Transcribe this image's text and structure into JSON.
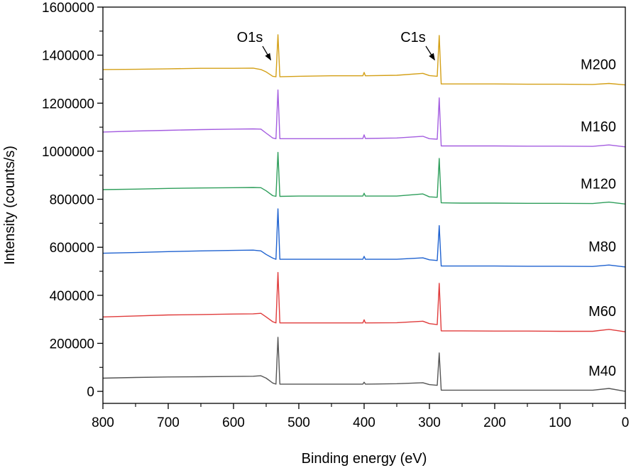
{
  "chart_data": {
    "type": "line",
    "title": "",
    "xlabel": "Binding energy (eV)",
    "ylabel": "Intensity (counts/s)",
    "xlim": [
      800,
      0
    ],
    "ylim": [
      -50000,
      1600000
    ],
    "x_ticks": [
      800,
      700,
      600,
      500,
      400,
      300,
      200,
      100,
      0
    ],
    "y_ticks": [
      0,
      200000,
      400000,
      600000,
      800000,
      1000000,
      1200000,
      1400000,
      1600000
    ],
    "x_tick_labels": [
      "800",
      "700",
      "600",
      "500",
      "400",
      "300",
      "200",
      "100",
      "0"
    ],
    "y_tick_labels": [
      "0",
      "200000",
      "400000",
      "600000",
      "800000",
      "1000000",
      "1200000",
      "1400000",
      "1600000"
    ],
    "grid": false,
    "legend": "inline labels at right",
    "series": [
      {
        "name": "M40",
        "color": "#555555",
        "points": [
          [
            800,
            55000
          ],
          [
            750,
            58000
          ],
          [
            700,
            60000
          ],
          [
            650,
            61000
          ],
          [
            600,
            62000
          ],
          [
            570,
            63000
          ],
          [
            558,
            65000
          ],
          [
            550,
            55000
          ],
          [
            540,
            35000
          ],
          [
            535,
            30000
          ],
          [
            532,
            225000
          ],
          [
            529,
            30000
          ],
          [
            500,
            30000
          ],
          [
            450,
            30000
          ],
          [
            402,
            30000
          ],
          [
            400,
            38000
          ],
          [
            398,
            30000
          ],
          [
            350,
            32000
          ],
          [
            310,
            36000
          ],
          [
            300,
            28000
          ],
          [
            288,
            25000
          ],
          [
            285,
            160000
          ],
          [
            282,
            5000
          ],
          [
            250,
            5000
          ],
          [
            200,
            5000
          ],
          [
            150,
            5000
          ],
          [
            100,
            5000
          ],
          [
            50,
            5000
          ],
          [
            25,
            12000
          ],
          [
            0,
            0
          ]
        ]
      },
      {
        "name": "M60",
        "color": "#e03c3c",
        "points": [
          [
            800,
            310000
          ],
          [
            750,
            314000
          ],
          [
            700,
            318000
          ],
          [
            650,
            320000
          ],
          [
            600,
            322000
          ],
          [
            570,
            323000
          ],
          [
            558,
            325000
          ],
          [
            550,
            310000
          ],
          [
            540,
            290000
          ],
          [
            535,
            285000
          ],
          [
            532,
            495000
          ],
          [
            529,
            285000
          ],
          [
            500,
            285000
          ],
          [
            450,
            285000
          ],
          [
            402,
            285000
          ],
          [
            400,
            298000
          ],
          [
            398,
            285000
          ],
          [
            350,
            286000
          ],
          [
            310,
            292000
          ],
          [
            300,
            282000
          ],
          [
            288,
            278000
          ],
          [
            285,
            450000
          ],
          [
            282,
            252000
          ],
          [
            250,
            252000
          ],
          [
            200,
            251000
          ],
          [
            150,
            251000
          ],
          [
            100,
            250000
          ],
          [
            50,
            250000
          ],
          [
            25,
            258000
          ],
          [
            0,
            248000
          ]
        ]
      },
      {
        "name": "M80",
        "color": "#1f62d0",
        "points": [
          [
            800,
            575000
          ],
          [
            750,
            578000
          ],
          [
            700,
            582000
          ],
          [
            650,
            585000
          ],
          [
            600,
            587000
          ],
          [
            570,
            588000
          ],
          [
            558,
            585000
          ],
          [
            550,
            570000
          ],
          [
            540,
            555000
          ],
          [
            535,
            550000
          ],
          [
            532,
            760000
          ],
          [
            529,
            550000
          ],
          [
            500,
            550000
          ],
          [
            450,
            550000
          ],
          [
            402,
            550000
          ],
          [
            400,
            562000
          ],
          [
            398,
            550000
          ],
          [
            350,
            550000
          ],
          [
            310,
            556000
          ],
          [
            300,
            548000
          ],
          [
            288,
            545000
          ],
          [
            285,
            690000
          ],
          [
            282,
            522000
          ],
          [
            250,
            522000
          ],
          [
            200,
            522000
          ],
          [
            150,
            521000
          ],
          [
            100,
            521000
          ],
          [
            50,
            520000
          ],
          [
            25,
            526000
          ],
          [
            0,
            518000
          ]
        ]
      },
      {
        "name": "M120",
        "color": "#2e9e5b",
        "points": [
          [
            800,
            840000
          ],
          [
            750,
            842000
          ],
          [
            700,
            845000
          ],
          [
            650,
            847000
          ],
          [
            600,
            848000
          ],
          [
            570,
            849000
          ],
          [
            558,
            848000
          ],
          [
            550,
            835000
          ],
          [
            540,
            815000
          ],
          [
            535,
            812000
          ],
          [
            532,
            995000
          ],
          [
            529,
            812000
          ],
          [
            500,
            813000
          ],
          [
            450,
            813000
          ],
          [
            402,
            813000
          ],
          [
            400,
            825000
          ],
          [
            398,
            813000
          ],
          [
            350,
            813000
          ],
          [
            310,
            822000
          ],
          [
            300,
            810000
          ],
          [
            288,
            808000
          ],
          [
            285,
            970000
          ],
          [
            282,
            785000
          ],
          [
            250,
            784000
          ],
          [
            200,
            784000
          ],
          [
            150,
            783000
          ],
          [
            100,
            783000
          ],
          [
            50,
            782000
          ],
          [
            25,
            788000
          ],
          [
            0,
            780000
          ]
        ]
      },
      {
        "name": "M160",
        "color": "#a45de0",
        "points": [
          [
            800,
            1080000
          ],
          [
            750,
            1084000
          ],
          [
            700,
            1087000
          ],
          [
            650,
            1090000
          ],
          [
            600,
            1092000
          ],
          [
            570,
            1093000
          ],
          [
            558,
            1092000
          ],
          [
            550,
            1075000
          ],
          [
            540,
            1055000
          ],
          [
            535,
            1052000
          ],
          [
            532,
            1255000
          ],
          [
            529,
            1052000
          ],
          [
            500,
            1052000
          ],
          [
            450,
            1052000
          ],
          [
            402,
            1053000
          ],
          [
            400,
            1068000
          ],
          [
            398,
            1053000
          ],
          [
            350,
            1055000
          ],
          [
            310,
            1062000
          ],
          [
            300,
            1052000
          ],
          [
            288,
            1050000
          ],
          [
            285,
            1222000
          ],
          [
            282,
            1022000
          ],
          [
            250,
            1022000
          ],
          [
            200,
            1022000
          ],
          [
            150,
            1021000
          ],
          [
            100,
            1021000
          ],
          [
            50,
            1020000
          ],
          [
            25,
            1026000
          ],
          [
            0,
            1018000
          ]
        ]
      },
      {
        "name": "M200",
        "color": "#d4a017",
        "points": [
          [
            800,
            1340000
          ],
          [
            750,
            1341000
          ],
          [
            700,
            1343000
          ],
          [
            650,
            1345000
          ],
          [
            600,
            1345000
          ],
          [
            570,
            1346000
          ],
          [
            558,
            1340000
          ],
          [
            550,
            1330000
          ],
          [
            540,
            1312000
          ],
          [
            535,
            1310000
          ],
          [
            532,
            1485000
          ],
          [
            529,
            1310000
          ],
          [
            500,
            1312000
          ],
          [
            450,
            1314000
          ],
          [
            402,
            1314000
          ],
          [
            400,
            1328000
          ],
          [
            398,
            1314000
          ],
          [
            350,
            1316000
          ],
          [
            310,
            1324000
          ],
          [
            300,
            1315000
          ],
          [
            288,
            1312000
          ],
          [
            285,
            1482000
          ],
          [
            282,
            1280000
          ],
          [
            250,
            1280000
          ],
          [
            200,
            1280000
          ],
          [
            150,
            1279000
          ],
          [
            100,
            1279000
          ],
          [
            50,
            1278000
          ],
          [
            25,
            1282000
          ],
          [
            0,
            1276000
          ]
        ]
      }
    ],
    "annotations": [
      {
        "text": "O1s",
        "text_x": 575,
        "text_y": 1455000,
        "tip_x": 543,
        "tip_y": 1380000
      },
      {
        "text": "C1s",
        "text_x": 325,
        "text_y": 1455000,
        "tip_x": 292,
        "tip_y": 1380000
      }
    ]
  }
}
